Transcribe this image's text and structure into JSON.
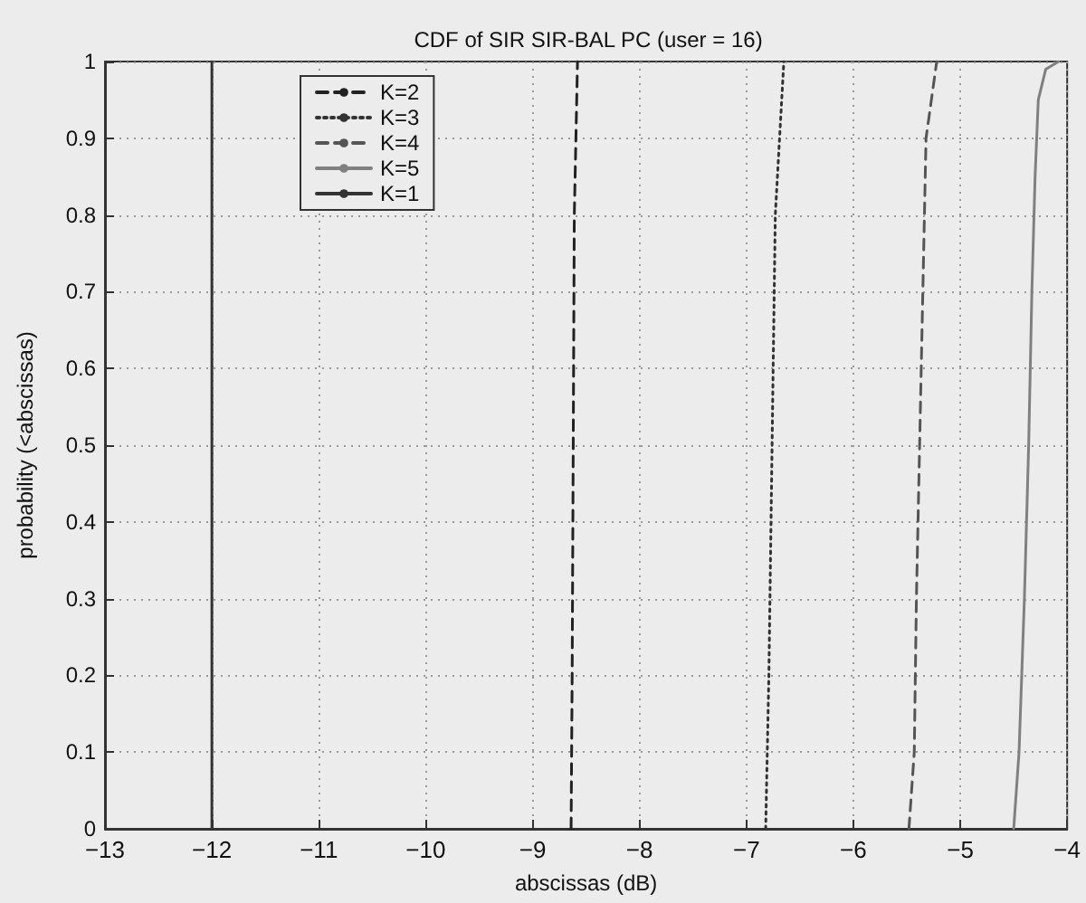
{
  "chart_data": {
    "type": "line",
    "title": "CDF of SIR SIR-BAL PC (user = 16)",
    "xlabel": "abscissas (dB)",
    "ylabel": "probability (<abscissas)",
    "xlim": [
      -13,
      -4
    ],
    "xticks": [
      -13,
      -12,
      -11,
      -10,
      -9,
      -8,
      -7,
      -6,
      -5,
      -4
    ],
    "ylim": [
      0,
      1
    ],
    "yticks": [
      0,
      0.1,
      0.2,
      0.3,
      0.4,
      0.5,
      0.6,
      0.7,
      0.8,
      0.9,
      1
    ],
    "grid": true,
    "legend": "top left",
    "marker": "none",
    "series": [
      {
        "name": "K=2",
        "color": "#222222",
        "line_style": "dashed",
        "x": [
          -8.64,
          -8.63,
          -8.62,
          -8.61,
          -8.58
        ],
        "values": [
          0,
          0.2,
          0.5,
          0.8,
          1
        ]
      },
      {
        "name": "K=3",
        "color": "#333333",
        "line_style": "dotted",
        "x": [
          -6.82,
          -6.79,
          -6.76,
          -6.73,
          -6.65
        ],
        "values": [
          0,
          0.2,
          0.5,
          0.8,
          1
        ]
      },
      {
        "name": "K=4",
        "color": "#555555",
        "line_style": "dashed",
        "x": [
          -5.48,
          -5.43,
          -5.41,
          -5.38,
          -5.35,
          -5.32,
          -5.22
        ],
        "values": [
          0,
          0.1,
          0.3,
          0.5,
          0.7,
          0.9,
          1
        ]
      },
      {
        "name": "K=5",
        "color": "#808080",
        "line_style": "solid",
        "x": [
          -4.5,
          -4.45,
          -4.4,
          -4.36,
          -4.33,
          -4.3,
          -4.27,
          -4.2,
          -4.08
        ],
        "values": [
          0,
          0.1,
          0.3,
          0.5,
          0.7,
          0.85,
          0.95,
          0.99,
          1
        ]
      },
      {
        "name": "K=1",
        "color": "#333333",
        "line_style": "solid",
        "x": [
          -12,
          -12
        ],
        "values": [
          0,
          1
        ]
      }
    ]
  }
}
